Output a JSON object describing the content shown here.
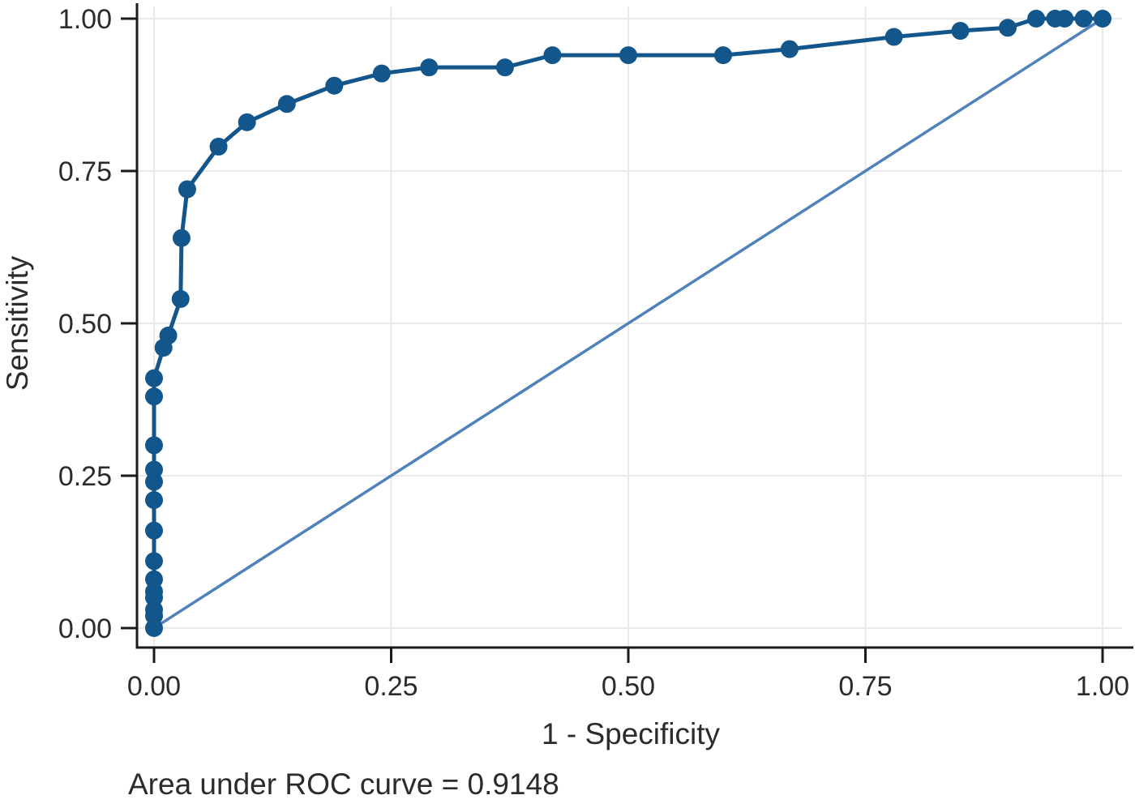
{
  "chart_data": {
    "type": "line",
    "title": "",
    "xlabel": "1 - Specificity",
    "ylabel": "Sensitivity",
    "annotation": "Area under ROC curve = 0.9148",
    "auc": 0.9148,
    "xlim": [
      0,
      1
    ],
    "ylim": [
      0,
      1
    ],
    "grid": true,
    "x_ticks": [
      0.0,
      0.25,
      0.5,
      0.75,
      1.0
    ],
    "y_ticks": [
      0.0,
      0.25,
      0.5,
      0.75,
      1.0
    ],
    "x_tick_labels": [
      "0.00",
      "0.25",
      "0.50",
      "0.75",
      "1.00"
    ],
    "y_tick_labels": [
      "0.00",
      "0.25",
      "0.50",
      "0.75",
      "1.00"
    ],
    "series": [
      {
        "name": "ROC curve",
        "marker": "circle",
        "color": "#13568c",
        "points": [
          [
            0.0,
            0.0
          ],
          [
            0.0,
            0.02
          ],
          [
            0.0,
            0.03
          ],
          [
            0.0,
            0.05
          ],
          [
            0.0,
            0.06
          ],
          [
            0.0,
            0.08
          ],
          [
            0.0,
            0.11
          ],
          [
            0.0,
            0.16
          ],
          [
            0.0,
            0.21
          ],
          [
            0.0,
            0.24
          ],
          [
            0.0,
            0.26
          ],
          [
            0.0,
            0.3
          ],
          [
            0.0,
            0.38
          ],
          [
            0.0,
            0.41
          ],
          [
            0.01,
            0.46
          ],
          [
            0.015,
            0.48
          ],
          [
            0.028,
            0.54
          ],
          [
            0.029,
            0.64
          ],
          [
            0.035,
            0.72
          ],
          [
            0.068,
            0.79
          ],
          [
            0.098,
            0.83
          ],
          [
            0.14,
            0.86
          ],
          [
            0.19,
            0.89
          ],
          [
            0.24,
            0.91
          ],
          [
            0.29,
            0.92
          ],
          [
            0.37,
            0.92
          ],
          [
            0.42,
            0.94
          ],
          [
            0.5,
            0.94
          ],
          [
            0.6,
            0.94
          ],
          [
            0.67,
            0.95
          ],
          [
            0.78,
            0.97
          ],
          [
            0.85,
            0.98
          ],
          [
            0.9,
            0.985
          ],
          [
            0.93,
            1.0
          ],
          [
            0.95,
            1.0
          ],
          [
            0.96,
            1.0
          ],
          [
            0.98,
            1.0
          ],
          [
            1.0,
            1.0
          ]
        ]
      },
      {
        "name": "Reference line",
        "marker": "none",
        "color": "#4f81bd",
        "points": [
          [
            0.0,
            0.0
          ],
          [
            1.0,
            1.0
          ]
        ]
      }
    ],
    "colors": {
      "curve": "#13568c",
      "reference": "#4f81bd",
      "grid": "#eaeaea",
      "axis": "#1a1a1a",
      "text": "#2b2b2b",
      "background": "#ffffff"
    }
  }
}
